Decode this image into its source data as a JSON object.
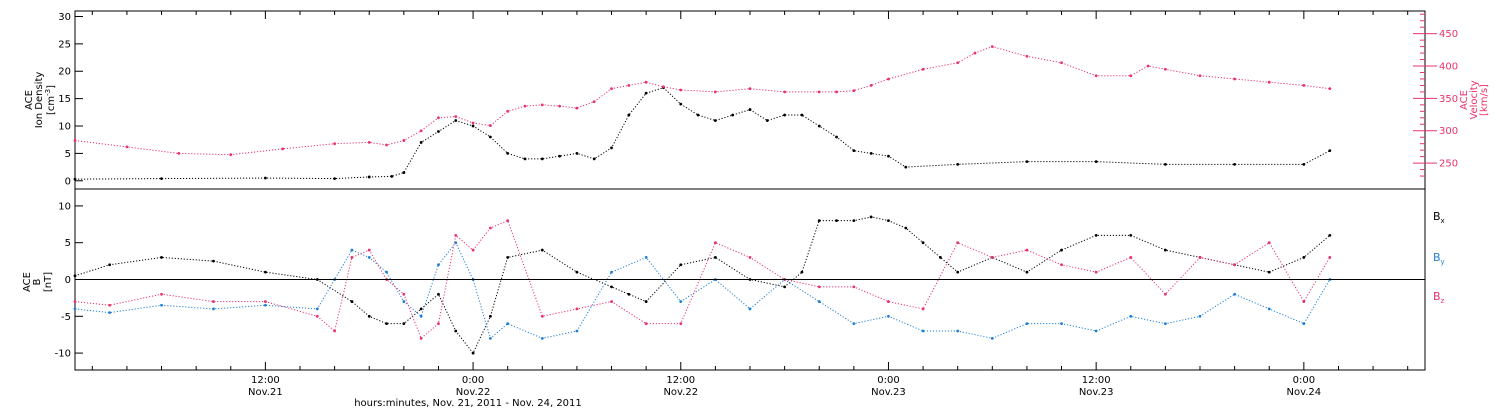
{
  "xaxis": {
    "title": "hours:minutes, Nov. 21, 2011 - Nov. 24, 2011",
    "ticks": [
      {
        "time": "12:00",
        "date": "Nov.21",
        "h": 12
      },
      {
        "time": "0:00",
        "date": "Nov.22",
        "h": 24
      },
      {
        "time": "12:00",
        "date": "Nov.22",
        "h": 36
      },
      {
        "time": "0:00",
        "date": "Nov.23",
        "h": 48
      },
      {
        "time": "12:00",
        "date": "Nov.23",
        "h": 60
      },
      {
        "time": "0:00",
        "date": "Nov.24",
        "h": 72
      }
    ],
    "range_hours": [
      1,
      79
    ]
  },
  "colors": {
    "density": "#000000",
    "velocity": "#e8336a",
    "bx": "#000000",
    "by": "#1e7fd6",
    "bz": "#e8336a"
  },
  "chart_data": [
    {
      "type": "scatter",
      "panel": "top",
      "x_unit": "hours since Nov. 21, 2011 00:00",
      "left_axis": {
        "label_lines": [
          "ACE",
          "Ion Density",
          "[cm^-3]"
        ],
        "ylim": [
          -1.5,
          31
        ],
        "ticks": [
          0,
          5,
          10,
          15,
          20,
          25,
          30
        ]
      },
      "right_axis": {
        "label_lines": [
          "ACE",
          "Velocity",
          "[km/s]"
        ],
        "ylim": [
          210,
          485
        ],
        "ticks": [
          250,
          300,
          350,
          400,
          450
        ],
        "color": "#e8336a"
      },
      "series": [
        {
          "axis": "left",
          "color": "#000000",
          "x": [
            1,
            6,
            12,
            16,
            18,
            19.3,
            20,
            21,
            22,
            23,
            24,
            25,
            26,
            27,
            28,
            29,
            30,
            31,
            32,
            33,
            34,
            35,
            36,
            37,
            38,
            39,
            40,
            41,
            42,
            43,
            44,
            45,
            46,
            47,
            48,
            49,
            52,
            56,
            60,
            64,
            68,
            72,
            73.5
          ],
          "y": [
            0.3,
            0.4,
            0.5,
            0.4,
            0.7,
            0.8,
            1.5,
            7,
            9,
            11,
            10,
            8,
            5,
            4,
            4,
            4.5,
            5,
            4,
            6,
            12,
            16,
            17,
            14,
            12,
            11,
            12,
            13,
            11,
            12,
            12,
            10,
            8,
            5.5,
            5,
            4.5,
            2.5,
            3,
            3.5,
            3.5,
            3,
            3,
            3,
            5.5
          ]
        },
        {
          "axis": "right",
          "color": "#e8336a",
          "x": [
            1,
            4,
            7,
            10,
            13,
            16,
            18,
            19,
            20,
            21,
            22,
            23,
            24,
            25,
            26,
            27,
            28,
            29,
            30,
            31,
            32,
            33,
            34,
            35,
            36,
            38,
            40,
            42,
            44,
            45,
            46,
            47,
            48,
            50,
            52,
            53,
            54,
            56,
            58,
            60,
            62,
            63,
            64,
            66,
            68,
            70,
            72,
            73.5
          ],
          "y": [
            285,
            275,
            265,
            263,
            272,
            280,
            282,
            278,
            285,
            300,
            320,
            322,
            312,
            308,
            330,
            338,
            340,
            338,
            335,
            345,
            365,
            370,
            375,
            368,
            363,
            360,
            365,
            360,
            360,
            360,
            362,
            370,
            380,
            395,
            405,
            420,
            430,
            415,
            405,
            385,
            385,
            400,
            395,
            385,
            380,
            375,
            370,
            365
          ]
        }
      ]
    },
    {
      "type": "scatter",
      "panel": "bottom",
      "x_unit": "hours since Nov. 21, 2011 00:00",
      "left_axis": {
        "label_lines": [
          "ACE",
          "B",
          "[nT]"
        ],
        "ylim": [
          -12.3,
          12.3
        ],
        "ticks": [
          -10,
          -5,
          0,
          5,
          10
        ]
      },
      "zero_line": 0,
      "series": [
        {
          "name": "Bx",
          "color": "#000000",
          "x": [
            1,
            3,
            6,
            9,
            12,
            15,
            17,
            18,
            19,
            20,
            21,
            22,
            23,
            24,
            25,
            26,
            28,
            30,
            32,
            33,
            34,
            36,
            38,
            40,
            42,
            43,
            44,
            45,
            46,
            47,
            48,
            49,
            50,
            51,
            52,
            54,
            56,
            58,
            60,
            62,
            64,
            66,
            68,
            70,
            72,
            73.5
          ],
          "y": [
            0.5,
            2,
            3,
            2.5,
            1,
            0,
            -3,
            -5,
            -6,
            -6,
            -4,
            -2,
            -7,
            -10,
            -5,
            3,
            4,
            1,
            -1,
            -2,
            -3,
            2,
            3,
            0,
            -1,
            1,
            8,
            8,
            8,
            8.5,
            8,
            7,
            5,
            3,
            1,
            3,
            1,
            4,
            6,
            6,
            4,
            3,
            2,
            1,
            3,
            6
          ]
        },
        {
          "name": "By",
          "color": "#1e7fd6",
          "x": [
            1,
            3,
            6,
            9,
            12,
            15,
            16,
            17,
            18,
            19,
            20,
            21,
            22,
            23,
            24,
            25,
            26,
            28,
            30,
            32,
            34,
            36,
            38,
            40,
            42,
            44,
            46,
            48,
            50,
            52,
            54,
            56,
            58,
            60,
            62,
            64,
            66,
            68,
            70,
            72,
            73.5
          ],
          "y": [
            -4,
            -4.5,
            -3.5,
            -4,
            -3.5,
            -4,
            0,
            4,
            3,
            1,
            -3,
            -5,
            2,
            5,
            0,
            -8,
            -6,
            -8,
            -7,
            1,
            3,
            -3,
            0,
            -4,
            0,
            -3,
            -6,
            -5,
            -7,
            -7,
            -8,
            -6,
            -6,
            -7,
            -5,
            -6,
            -5,
            -2,
            -4,
            -6,
            0
          ]
        },
        {
          "name": "Bz",
          "color": "#e8336a",
          "x": [
            1,
            3,
            6,
            9,
            12,
            15,
            16,
            17,
            18,
            19,
            20,
            21,
            22,
            23,
            24,
            25,
            26,
            28,
            30,
            32,
            34,
            36,
            38,
            40,
            42,
            44,
            46,
            48,
            50,
            52,
            54,
            56,
            58,
            60,
            62,
            64,
            66,
            68,
            70,
            72,
            73.5
          ],
          "y": [
            -3,
            -3.5,
            -2,
            -3,
            -3,
            -5,
            -7,
            3,
            4,
            0,
            -2,
            -8,
            -6,
            6,
            4,
            7,
            8,
            -5,
            -4,
            -3,
            -6,
            -6,
            5,
            3,
            0,
            -1,
            -1,
            -3,
            -4,
            5,
            3,
            4,
            2,
            1,
            3,
            -2,
            3,
            2,
            5,
            -3,
            3
          ]
        }
      ],
      "legend": [
        {
          "label": "B",
          "sub": "x",
          "color": "#000000"
        },
        {
          "label": "B",
          "sub": "y",
          "color": "#1e7fd6"
        },
        {
          "label": "B",
          "sub": "z",
          "color": "#e8336a"
        }
      ]
    }
  ]
}
